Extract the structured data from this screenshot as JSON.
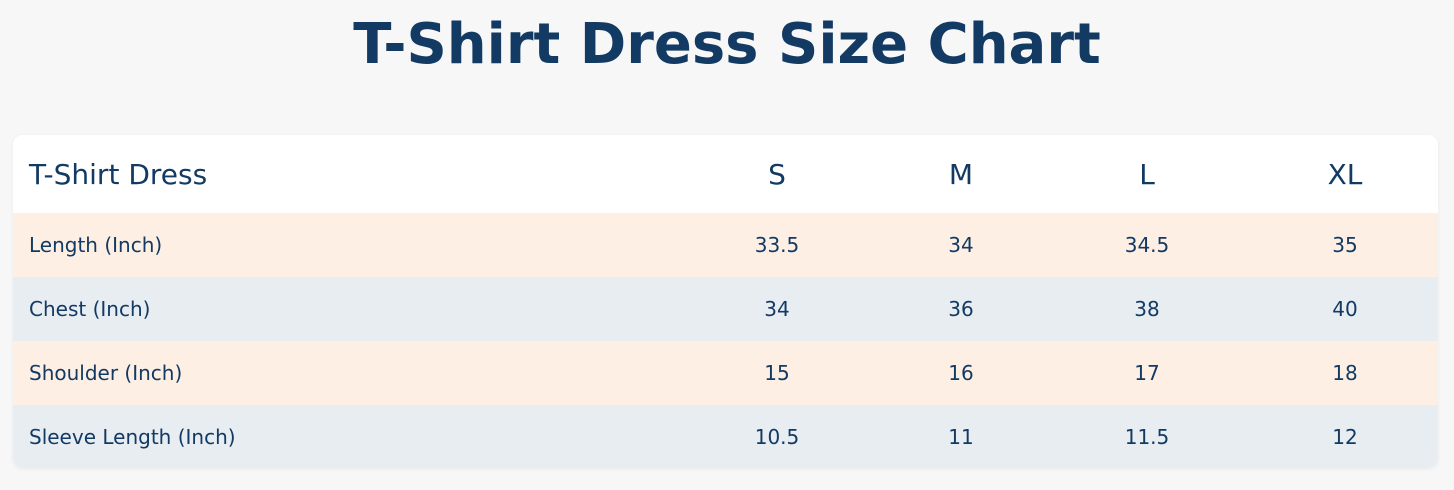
{
  "header": {
    "title": "T-Shirt Dress Size Chart"
  },
  "table": {
    "columns": [
      "T-Shirt Dress",
      "S",
      "M",
      "L",
      "XL"
    ],
    "rows": [
      [
        "Length (Inch)",
        "33.5",
        "34",
        "34.5",
        "35"
      ],
      [
        "Chest (Inch)",
        "34",
        "36",
        "38",
        "40"
      ],
      [
        "Shoulder (Inch)",
        "15",
        "16",
        "17",
        "18"
      ],
      [
        "Sleeve Length (Inch)",
        "10.5",
        "11",
        "11.5",
        "12"
      ]
    ]
  }
}
